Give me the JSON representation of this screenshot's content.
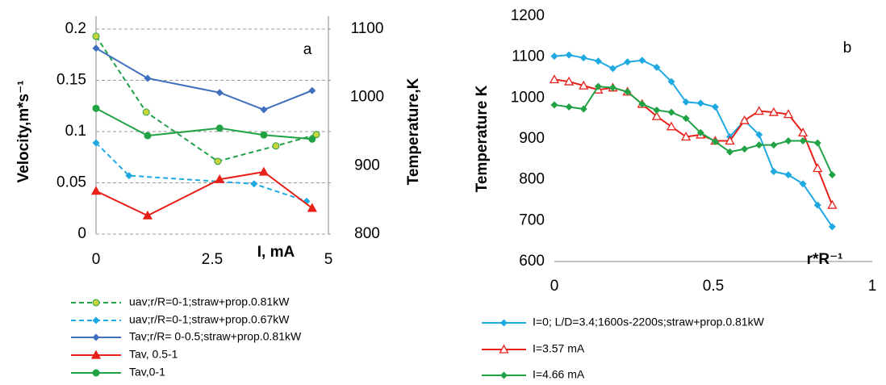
{
  "chart_data": [
    {
      "type": "line",
      "panel_label": "a",
      "x_label": "I, mA",
      "y_label": "Velocity,m*s⁻¹",
      "y2_label": "Temperature,K",
      "xlim": [
        0,
        5
      ],
      "xticks": [
        0,
        2.5,
        5
      ],
      "ylim": [
        0,
        0.2
      ],
      "yticks": [
        0,
        0.05,
        0.1,
        0.15,
        0.2
      ],
      "y2lim": [
        800,
        1100
      ],
      "y2ticks": [
        800,
        900,
        1000,
        1100
      ],
      "grid": true,
      "series": [
        {
          "name": "uav;r/R=0-1;straw+prop.0.81kW",
          "color": "#21a04a",
          "marker": "circle",
          "marker_fill": "#c8d43a",
          "dashed": true,
          "x": [
            0,
            1.08,
            2.62,
            3.87,
            4.74
          ],
          "values": [
            0.193,
            0.119,
            0.071,
            0.086,
            0.097
          ]
        },
        {
          "name": "uav;r/R=0-1;straw+prop.0.67kW",
          "color": "#1fa9e1",
          "marker": "diamond",
          "dashed": true,
          "x": [
            0,
            0.71,
            3.4,
            4.53
          ],
          "values": [
            0.089,
            0.057,
            0.049,
            0.032
          ]
        },
        {
          "name": "Tav;r/R= 0-0.5;straw+prop.0.81kW",
          "color": "#3f6fbf",
          "marker": "diamond",
          "axis": "y2",
          "x": [
            0,
            1.11,
            2.66,
            3.61,
            4.65
          ],
          "values": [
            1072,
            1028,
            1007,
            982,
            1010
          ]
        },
        {
          "name": "Tav, 0.5-1",
          "color": "#e8201a",
          "marker": "triangle",
          "axis": "y2",
          "x": [
            0,
            1.11,
            2.66,
            3.61,
            4.65
          ],
          "values": [
            863,
            827,
            880,
            891,
            838
          ]
        },
        {
          "name": "Tav,0-1",
          "color": "#21a345",
          "marker": "circle",
          "axis": "y2",
          "x": [
            0,
            1.11,
            2.66,
            3.61,
            4.65
          ],
          "values": [
            984,
            944,
            955,
            945,
            939
          ]
        }
      ]
    },
    {
      "type": "line",
      "panel_label": "b",
      "x_label": "r*R⁻¹",
      "y_label": "Temperature K",
      "xlim": [
        0,
        1
      ],
      "xticks": [
        0,
        0.5,
        1
      ],
      "ylim": [
        600,
        1200
      ],
      "yticks": [
        600,
        700,
        800,
        900,
        1000,
        1100,
        1200
      ],
      "grid": false,
      "x": [
        0,
        0.046,
        0.092,
        0.138,
        0.184,
        0.23,
        0.276,
        0.322,
        0.368,
        0.414,
        0.46,
        0.506,
        0.552,
        0.598,
        0.644,
        0.69,
        0.736,
        0.782,
        0.828,
        0.874
      ],
      "series": [
        {
          "name": "I=0; L/D=3.4;1600s-2200s;straw+prop.0.81kW",
          "color": "#1fa9e1",
          "marker": "diamond",
          "values": [
            1102,
            1105,
            1098,
            1090,
            1072,
            1088,
            1092,
            1075,
            1040,
            990,
            987,
            978,
            905,
            945,
            910,
            820,
            812,
            790,
            738,
            685
          ]
        },
        {
          "name": "I=3.57 mA",
          "color": "#e8201a",
          "marker": "triangle-open",
          "values": [
            1045,
            1040,
            1030,
            1020,
            1025,
            1015,
            985,
            955,
            930,
            905,
            910,
            895,
            895,
            945,
            968,
            965,
            960,
            915,
            828,
            738
          ]
        },
        {
          "name": "I=4.66 mA",
          "color": "#21a345",
          "marker": "diamond",
          "values": [
            983,
            978,
            973,
            1028,
            1025,
            1015,
            985,
            970,
            965,
            950,
            915,
            893,
            868,
            875,
            885,
            885,
            895,
            895,
            890,
            812
          ]
        }
      ]
    }
  ]
}
